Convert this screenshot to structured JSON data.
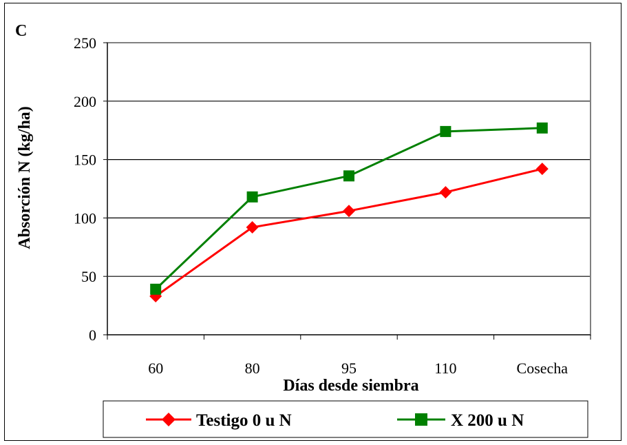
{
  "panel_label": "C",
  "colors": {
    "testigo": "#ff0000",
    "x200": "#008000",
    "plot_border": "#808080",
    "grid": "#000000"
  },
  "chart_data": {
    "type": "line",
    "categories": [
      "60",
      "80",
      "95",
      "110",
      "Cosecha"
    ],
    "series": [
      {
        "name": "Testigo 0 u N",
        "values": [
          33,
          92,
          106,
          122,
          142
        ],
        "marker": "diamond"
      },
      {
        "name": "X 200 u N",
        "values": [
          39,
          118,
          136,
          174,
          177
        ],
        "marker": "square"
      }
    ],
    "xlabel": "Días desde siembra",
    "ylabel": "Absorción N (kg/ha)",
    "ylim": [
      0,
      250
    ],
    "yticks": [
      0,
      50,
      100,
      150,
      200,
      250
    ],
    "grid": true,
    "legend_position": "bottom"
  }
}
